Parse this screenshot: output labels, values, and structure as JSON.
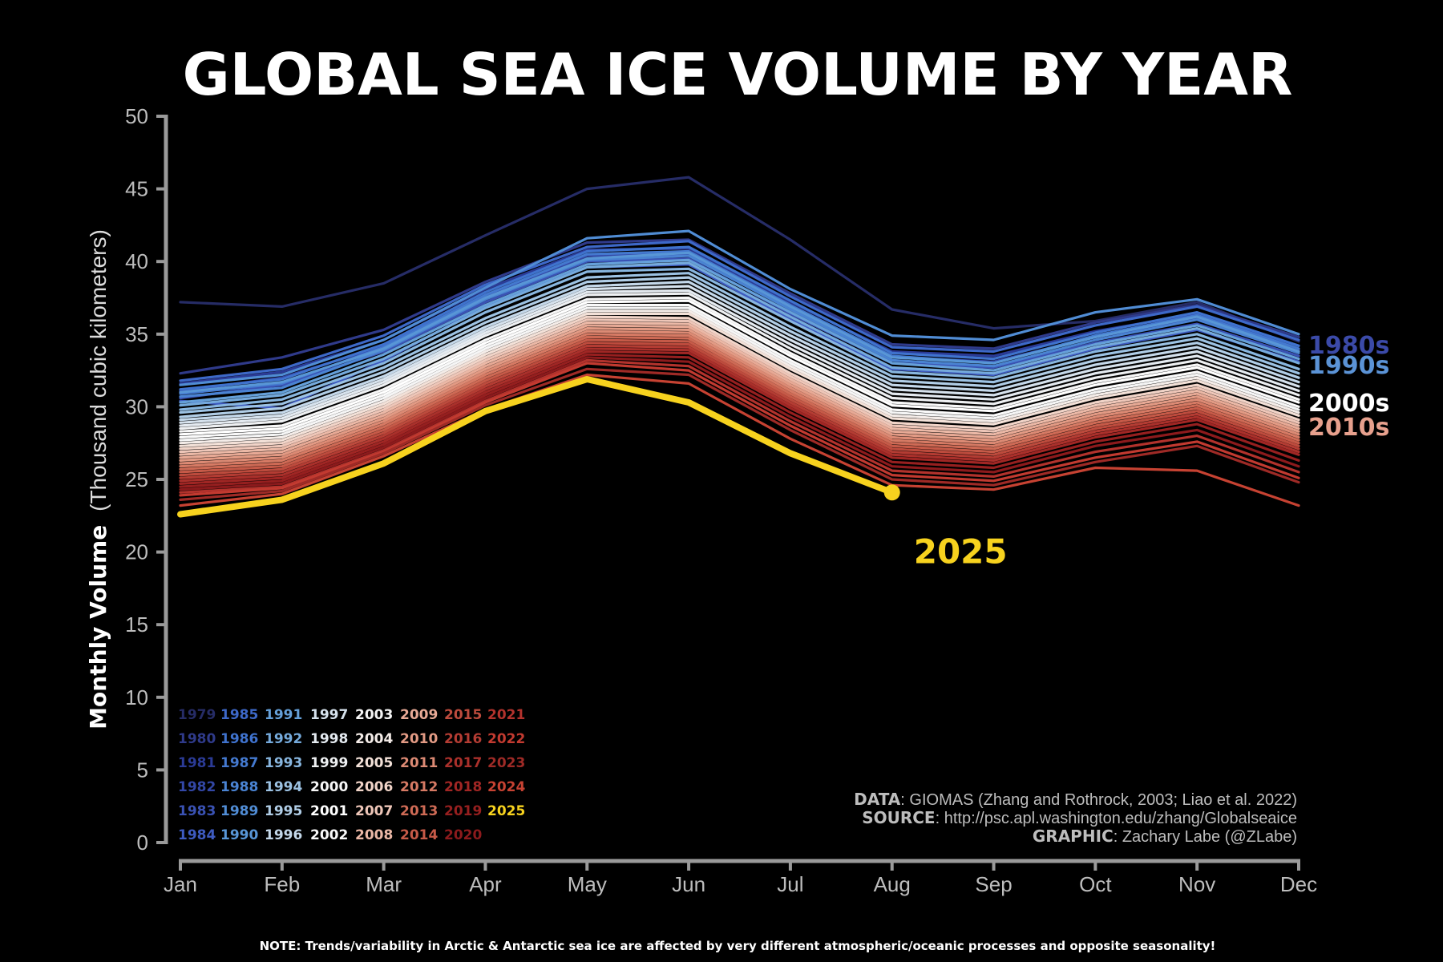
{
  "chart_data": {
    "type": "line",
    "title": "GLOBAL SEA ICE VOLUME BY YEAR",
    "ylabel_bold": "Monthly Volume",
    "ylabel_unit": "(Thousand cubic kilometers)",
    "ylim": [
      0,
      50
    ],
    "yticks": [
      0,
      5,
      10,
      15,
      20,
      25,
      30,
      35,
      40,
      45,
      50
    ],
    "categories": [
      "Jan",
      "Feb",
      "Mar",
      "Apr",
      "May",
      "Jun",
      "Jul",
      "Aug",
      "Sep",
      "Oct",
      "Nov",
      "Dec"
    ],
    "grid": false,
    "decade_labels": [
      {
        "text": "1980s",
        "color": "#3b4aa8",
        "value": 34.2
      },
      {
        "text": "1990s",
        "color": "#5b93d6",
        "value": 32.6
      },
      {
        "text": "2000s",
        "color": "#ffffff",
        "value": 30.0
      },
      {
        "text": "2010s",
        "color": "#e7a08d",
        "value": 28.2
      }
    ],
    "highlight": {
      "year": "2025",
      "label": "2025",
      "color": "#f7d21e",
      "last_value": 24.1
    },
    "series": [
      {
        "name": "1979",
        "color": "#262c66",
        "values": [
          37.2,
          36.9,
          38.5,
          41.8,
          45.0,
          45.8,
          41.5,
          36.7,
          35.4,
          35.9,
          37.2,
          34.5
        ]
      },
      {
        "name": "1980",
        "color": "#2f3a8a",
        "values": [
          32.3,
          33.4,
          35.3,
          38.6,
          41.3,
          41.5,
          37.8,
          34.3,
          34.0,
          35.8,
          37.0,
          34.8
        ]
      },
      {
        "name": "1981",
        "color": "#2b3b96",
        "values": [
          31.6,
          32.4,
          34.6,
          38.1,
          40.8,
          40.9,
          37.2,
          33.8,
          33.5,
          35.2,
          36.4,
          34.2
        ]
      },
      {
        "name": "1982",
        "color": "#3347a6",
        "values": [
          31.1,
          32.0,
          34.2,
          37.6,
          40.4,
          40.5,
          36.8,
          33.4,
          33.1,
          34.8,
          36.1,
          33.9
        ]
      },
      {
        "name": "1983",
        "color": "#3a52b4",
        "values": [
          30.6,
          31.5,
          33.8,
          37.2,
          40.0,
          40.2,
          36.4,
          33.0,
          32.7,
          34.4,
          35.7,
          33.5
        ]
      },
      {
        "name": "1984",
        "color": "#3e5bc0",
        "values": [
          30.4,
          29.9,
          33.2,
          36.9,
          39.6,
          39.8,
          36.0,
          32.6,
          32.2,
          34.0,
          35.3,
          33.1
        ]
      },
      {
        "name": "1985",
        "color": "#3d68c8",
        "values": [
          31.8,
          32.6,
          34.9,
          38.4,
          41.0,
          41.4,
          37.6,
          34.1,
          33.8,
          35.6,
          36.9,
          34.6
        ]
      },
      {
        "name": "1986",
        "color": "#3f72cd",
        "values": [
          31.2,
          31.9,
          34.3,
          37.9,
          40.7,
          41.0,
          37.3,
          33.7,
          33.3,
          35.1,
          36.5,
          34.2
        ]
      },
      {
        "name": "1987",
        "color": "#4479cf",
        "values": [
          30.9,
          31.6,
          34.1,
          37.7,
          40.5,
          40.7,
          37.0,
          33.5,
          33.0,
          34.9,
          36.3,
          34.0
        ]
      },
      {
        "name": "1988",
        "color": "#4a83d2",
        "values": [
          30.7,
          31.3,
          33.9,
          37.4,
          40.1,
          40.4,
          36.7,
          33.2,
          32.8,
          34.6,
          36.0,
          33.7
        ]
      },
      {
        "name": "1989",
        "color": "#508cd4",
        "values": [
          31.5,
          32.2,
          34.6,
          38.2,
          41.6,
          42.1,
          38.1,
          34.9,
          34.6,
          36.5,
          37.4,
          35.0
        ]
      },
      {
        "name": "1990",
        "color": "#5896d6",
        "values": [
          31.0,
          31.7,
          34.0,
          37.5,
          40.2,
          40.6,
          36.9,
          33.4,
          33.0,
          34.8,
          36.2,
          33.8
        ]
      },
      {
        "name": "1991",
        "color": "#65a0d9",
        "values": [
          30.3,
          31.0,
          33.6,
          37.0,
          39.8,
          40.1,
          36.5,
          33.0,
          32.5,
          34.3,
          35.6,
          33.3
        ]
      },
      {
        "name": "1992",
        "color": "#75aadc",
        "values": [
          30.1,
          30.8,
          33.3,
          36.8,
          39.6,
          39.9,
          36.2,
          32.7,
          32.3,
          34.1,
          35.4,
          33.0
        ]
      },
      {
        "name": "1993",
        "color": "#88b6df",
        "values": [
          29.8,
          30.5,
          33.0,
          36.5,
          39.3,
          39.5,
          35.9,
          32.4,
          32.0,
          33.8,
          35.0,
          32.6
        ]
      },
      {
        "name": "1994",
        "color": "#9cc2e3",
        "values": [
          29.6,
          30.2,
          32.7,
          36.1,
          38.9,
          39.2,
          35.5,
          32.1,
          31.7,
          33.5,
          34.7,
          32.3
        ]
      },
      {
        "name": "1995",
        "color": "#b0cde6",
        "values": [
          29.3,
          29.9,
          32.4,
          35.8,
          38.6,
          38.9,
          35.2,
          31.8,
          31.4,
          33.2,
          34.4,
          32.0
        ]
      },
      {
        "name": "1996",
        "color": "#c4d8ea",
        "values": [
          29.1,
          29.6,
          32.1,
          35.5,
          38.3,
          38.6,
          34.9,
          31.5,
          31.1,
          32.9,
          34.1,
          31.7
        ]
      },
      {
        "name": "1997",
        "color": "#d6e2ed",
        "values": [
          28.9,
          29.4,
          31.9,
          35.3,
          38.1,
          38.3,
          34.6,
          31.2,
          30.8,
          32.6,
          33.8,
          31.4
        ]
      },
      {
        "name": "1998",
        "color": "#e4eaf0",
        "values": [
          28.7,
          29.2,
          31.7,
          35.1,
          37.9,
          38.0,
          34.3,
          30.9,
          30.5,
          32.3,
          33.5,
          31.1
        ]
      },
      {
        "name": "1999",
        "color": "#eef0f2",
        "values": [
          28.5,
          29.0,
          31.5,
          34.9,
          37.7,
          37.8,
          34.0,
          30.6,
          30.2,
          32.0,
          33.2,
          30.8
        ]
      },
      {
        "name": "2000",
        "color": "#f7f7f7",
        "values": [
          28.3,
          28.7,
          31.2,
          34.6,
          37.4,
          37.5,
          33.7,
          30.3,
          29.9,
          31.7,
          32.9,
          30.5
        ]
      },
      {
        "name": "2001",
        "color": "#ffffff",
        "values": [
          28.1,
          28.5,
          31.0,
          34.4,
          37.2,
          37.3,
          33.5,
          30.1,
          29.7,
          31.5,
          32.7,
          30.3
        ]
      },
      {
        "name": "2002",
        "color": "#fafafa",
        "values": [
          27.9,
          28.3,
          30.8,
          34.2,
          37.0,
          37.0,
          33.2,
          29.8,
          29.4,
          31.2,
          32.4,
          30.0
        ]
      },
      {
        "name": "2003",
        "color": "#f5f5f5",
        "values": [
          27.7,
          28.1,
          30.6,
          34.0,
          36.8,
          36.8,
          33.0,
          29.6,
          29.2,
          31.0,
          32.2,
          29.8
        ]
      },
      {
        "name": "2004",
        "color": "#f4ece8",
        "values": [
          27.5,
          27.9,
          30.4,
          33.8,
          36.6,
          36.6,
          32.8,
          29.4,
          29.0,
          30.8,
          32.0,
          29.6
        ]
      },
      {
        "name": "2005",
        "color": "#f3e1d8",
        "values": [
          27.3,
          27.7,
          30.2,
          33.6,
          36.4,
          36.4,
          32.6,
          29.2,
          28.8,
          30.6,
          31.8,
          29.4
        ]
      },
      {
        "name": "2006",
        "color": "#f1d4c8",
        "values": [
          27.1,
          27.5,
          30.0,
          33.4,
          36.2,
          36.1,
          32.3,
          28.9,
          28.5,
          30.3,
          31.5,
          29.1
        ]
      },
      {
        "name": "2007",
        "color": "#eec6b8",
        "values": [
          26.9,
          27.3,
          29.8,
          33.2,
          36.0,
          35.9,
          32.1,
          28.7,
          28.3,
          30.1,
          31.3,
          28.9
        ]
      },
      {
        "name": "2008",
        "color": "#ebb8a6",
        "values": [
          26.7,
          27.1,
          29.6,
          33.0,
          35.8,
          35.7,
          31.9,
          28.5,
          28.1,
          29.9,
          31.1,
          28.7
        ]
      },
      {
        "name": "2009",
        "color": "#e7a995",
        "values": [
          26.5,
          26.9,
          29.4,
          32.8,
          35.6,
          35.5,
          31.7,
          28.3,
          27.9,
          29.7,
          30.9,
          28.5
        ]
      },
      {
        "name": "2010",
        "color": "#e29a84",
        "values": [
          26.3,
          26.7,
          29.2,
          32.6,
          35.4,
          35.3,
          31.5,
          28.1,
          27.7,
          29.5,
          30.7,
          28.3
        ]
      },
      {
        "name": "2011",
        "color": "#dc8a74",
        "values": [
          26.1,
          26.5,
          29.0,
          32.4,
          35.2,
          35.1,
          31.3,
          27.9,
          27.5,
          29.3,
          30.5,
          28.1
        ]
      },
      {
        "name": "2012",
        "color": "#d67a64",
        "values": [
          25.9,
          26.3,
          28.8,
          32.2,
          35.0,
          34.9,
          31.1,
          27.7,
          27.3,
          29.1,
          30.3,
          27.9
        ]
      },
      {
        "name": "2013",
        "color": "#ce6a55",
        "values": [
          25.7,
          26.1,
          28.6,
          32.0,
          34.8,
          34.7,
          30.9,
          27.5,
          27.1,
          28.9,
          30.1,
          27.7
        ]
      },
      {
        "name": "2014",
        "color": "#c65a48",
        "values": [
          25.5,
          25.9,
          28.4,
          31.8,
          34.6,
          34.5,
          30.7,
          27.3,
          26.9,
          28.7,
          29.9,
          27.5
        ]
      },
      {
        "name": "2015",
        "color": "#bd4b3d",
        "values": [
          25.3,
          25.7,
          28.2,
          31.6,
          34.4,
          34.3,
          30.5,
          27.1,
          26.7,
          28.5,
          29.7,
          27.3
        ]
      },
      {
        "name": "2016",
        "color": "#b43c33",
        "values": [
          25.1,
          25.5,
          28.0,
          31.4,
          34.2,
          34.1,
          30.3,
          26.9,
          26.5,
          28.3,
          29.5,
          27.1
        ]
      },
      {
        "name": "2017",
        "color": "#aa302b",
        "values": [
          24.9,
          25.3,
          27.8,
          31.2,
          34.0,
          33.9,
          30.1,
          26.7,
          26.3,
          28.1,
          29.3,
          26.9
        ]
      },
      {
        "name": "2018",
        "color": "#a02624",
        "values": [
          24.7,
          25.1,
          27.6,
          31.0,
          33.8,
          33.7,
          29.9,
          26.5,
          26.1,
          27.9,
          29.1,
          26.7
        ]
      },
      {
        "name": "2019",
        "color": "#961f1f",
        "values": [
          24.5,
          24.9,
          27.4,
          30.8,
          33.6,
          33.4,
          29.6,
          26.2,
          25.8,
          27.6,
          28.8,
          26.3
        ]
      },
      {
        "name": "2020",
        "color": "#8c1a1c",
        "values": [
          24.3,
          24.7,
          27.2,
          30.6,
          33.4,
          33.1,
          29.3,
          25.9,
          25.5,
          27.3,
          28.4,
          25.9
        ]
      },
      {
        "name": "2021",
        "color": "#b2322c",
        "values": [
          24.1,
          24.5,
          27.0,
          30.4,
          33.2,
          32.8,
          29.0,
          25.6,
          25.2,
          26.9,
          28.0,
          25.5
        ]
      },
      {
        "name": "2022",
        "color": "#c23a30",
        "values": [
          23.9,
          24.4,
          26.9,
          30.3,
          33.0,
          32.5,
          28.7,
          25.3,
          24.9,
          26.5,
          27.6,
          25.1
        ]
      },
      {
        "name": "2023",
        "color": "#9e2a26",
        "values": [
          23.6,
          24.2,
          26.8,
          30.1,
          32.6,
          32.2,
          28.4,
          25.0,
          24.6,
          26.2,
          27.3,
          24.8
        ]
      },
      {
        "name": "2024",
        "color": "#c64232",
        "values": [
          23.2,
          24.0,
          26.6,
          29.8,
          32.2,
          31.6,
          27.8,
          24.6,
          24.3,
          25.8,
          25.6,
          23.2
        ]
      },
      {
        "name": "2025",
        "color": "#f7d21e",
        "values": [
          22.6,
          23.6,
          26.1,
          29.7,
          31.9,
          30.3,
          26.8,
          24.1,
          null,
          null,
          null,
          null
        ]
      }
    ],
    "legend_columns": [
      [
        "1979",
        "1980",
        "1981",
        "1982",
        "1983",
        "1984"
      ],
      [
        "1985",
        "1986",
        "1987",
        "1988",
        "1989",
        "1990"
      ],
      [
        "1991",
        "1992",
        "1993",
        "1994",
        "1995",
        "1996"
      ],
      [
        "1997",
        "1998",
        "1999",
        "2000",
        "2001",
        "2002"
      ],
      [
        "2003",
        "2004",
        "2005",
        "2006",
        "2007",
        "2008"
      ],
      [
        "2009",
        "2010",
        "2011",
        "2012",
        "2013",
        "2014"
      ],
      [
        "2015",
        "2016",
        "2017",
        "2018",
        "2019",
        "2020"
      ],
      [
        "2021",
        "2022",
        "2023",
        "2024",
        "2025"
      ]
    ]
  },
  "credits": {
    "data_label": "DATA",
    "data_text": ": GIOMAS (Zhang and Rothrock, 2003; Liao et al. 2022)",
    "source_label": "SOURCE",
    "source_text": ": http://psc.apl.washington.edu/zhang/Globalseaice",
    "graphic_label": "GRAPHIC",
    "graphic_text": ": Zachary Labe (@ZLabe)"
  },
  "note": "NOTE: Trends/variability in Arctic & Antarctic sea ice are affected by very different atmospheric/oceanic processes and opposite seasonality!"
}
